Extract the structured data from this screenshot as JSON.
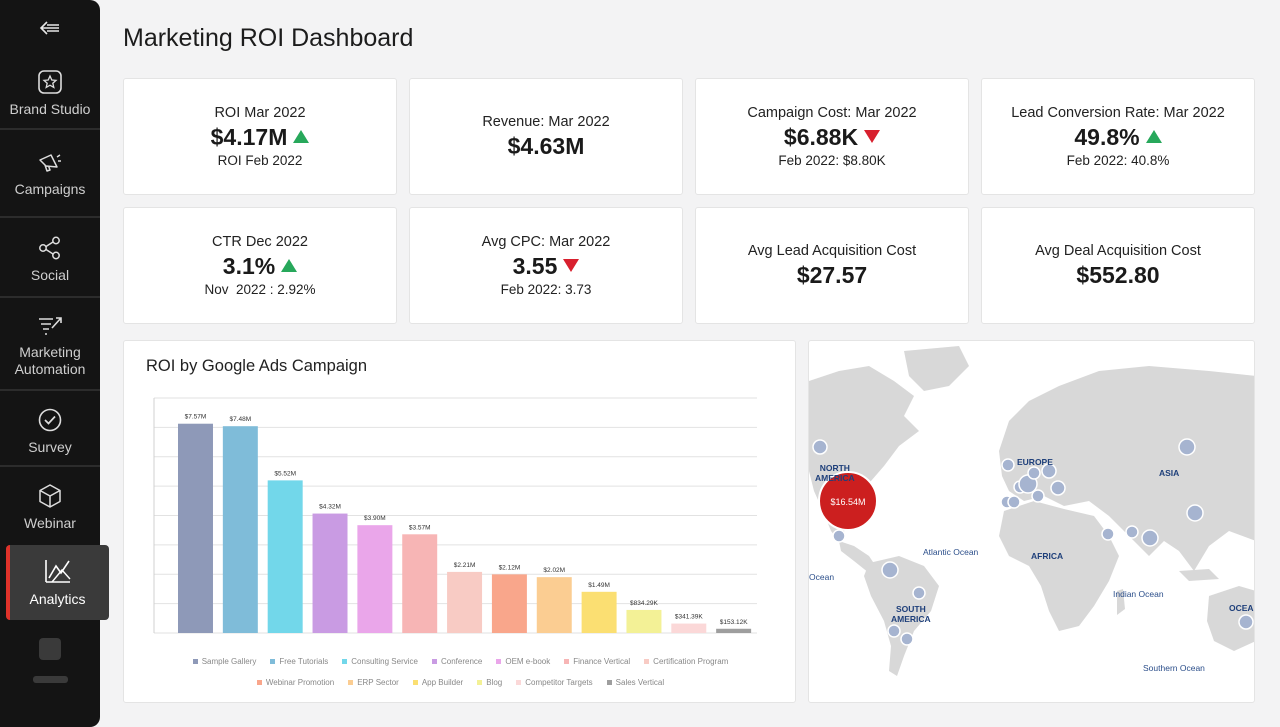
{
  "sidebar": {
    "items": [
      {
        "label": "Brand Studio",
        "icon": "brand-studio-icon"
      },
      {
        "label": "Campaigns",
        "icon": "megaphone-icon"
      },
      {
        "label": "Social",
        "icon": "share-nodes-icon"
      },
      {
        "label": "Marketing Automation",
        "icon": "funnel-arrow-icon"
      },
      {
        "label": "Survey",
        "icon": "check-circle-icon"
      },
      {
        "label": "Webinar",
        "icon": "webinar-cube-icon"
      },
      {
        "label": "Analytics",
        "icon": "analytics-chart-icon",
        "active": true
      }
    ]
  },
  "page": {
    "title": "Marketing ROI Dashboard"
  },
  "kpis": {
    "roi": {
      "label": "ROI Mar 2022",
      "value": "$4.17M",
      "trend": "up",
      "sub": "ROI Feb 2022"
    },
    "revenue": {
      "label": "Revenue: Mar 2022",
      "value": "$4.63M"
    },
    "campaign_cost": {
      "label": "Campaign Cost: Mar 2022",
      "value": "$6.88K",
      "trend": "down",
      "sub": "Feb 2022: $8.80K"
    },
    "lead_conversion": {
      "label": "Lead Conversion Rate: Mar 2022",
      "value": "49.8%",
      "trend": "up",
      "sub": "Feb 2022: 40.8%"
    },
    "ctr": {
      "label": "CTR Dec 2022",
      "value": "3.1%",
      "trend": "up",
      "sub": "Nov  2022 : 2.92%"
    },
    "avg_cpc": {
      "label": "Avg CPC: Mar 2022",
      "value": "3.55",
      "trend": "down",
      "sub": "Feb 2022: 3.73"
    },
    "avg_lead_cost": {
      "label": "Avg Lead Acquisition Cost",
      "value": "$27.57"
    },
    "avg_deal_cost": {
      "label": "Avg Deal Acquisition Cost",
      "value": "$552.80"
    }
  },
  "colors": {
    "up": "#27a85b",
    "down": "#d8202e",
    "accent": "#e0322a",
    "map_land": "#d8d8d8",
    "map_dot": "#a6b4d0",
    "map_highlight": "#cc1f1f"
  },
  "chart_data": {
    "type": "bar",
    "title": "ROI by Google Ads Campaign",
    "categories": [
      "Sample Gallery",
      "Free Tutorials",
      "Consulting Service",
      "Conference",
      "OEM e-book",
      "Finance Vertical",
      "Certification Program",
      "Webinar Promotion",
      "ERP Sector",
      "App Builder",
      "Blog",
      "Competitor Targets",
      "Sales Vertical"
    ],
    "values": [
      7570000,
      7480000,
      5520000,
      4320000,
      3900000,
      3570000,
      2210000,
      2120000,
      2020000,
      1490000,
      834290,
      341390,
      153120
    ],
    "labels": [
      "$7.57M",
      "$7.48M",
      "$5.52M",
      "$4.32M",
      "$3.90M",
      "$3.57M",
      "$2.21M",
      "$2.12M",
      "$2.02M",
      "$1.49M",
      "$834.29K",
      "$341.39K",
      "$153.12K"
    ],
    "colors": [
      "#8e99b8",
      "#7fbcd9",
      "#72d7ea",
      "#c99be3",
      "#eaa6ea",
      "#f7b5b5",
      "#f8cbc4",
      "#f9a68b",
      "#fbcd92",
      "#fbdf72",
      "#f3f196",
      "#fbd8d8",
      "#9e9e9e"
    ],
    "ylim": [
      0,
      8500000
    ],
    "grid": true,
    "legend": "bottom",
    "xlabel": "",
    "ylabel": ""
  },
  "map": {
    "continents": [
      "NORTH AMERICA",
      "EUROPE",
      "ASIA",
      "AFRICA",
      "SOUTH AMERICA",
      "OCEANIA"
    ],
    "north_america_line1": "NORTH",
    "north_america_line2": "AMERICA",
    "europe": "EUROPE",
    "asia": "ASIA",
    "africa": "AFRICA",
    "south_america_line1": "SOUTH",
    "south_america_line2": "AMERICA",
    "oceania": "OCEA",
    "oceans": {
      "atlantic": "Atlantic Ocean",
      "indian": "Indian Ocean",
      "southern": "Southern Ocean",
      "pacific": "Ocean"
    },
    "highlight_value": "$16.54M"
  }
}
